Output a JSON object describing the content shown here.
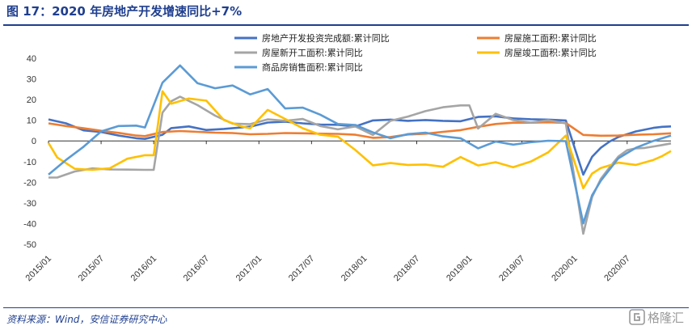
{
  "figure": {
    "title": "图 17：2020 年房地产开发增速同比+7%",
    "source": "资料来源：Wind，安信证券研究中心"
  },
  "watermark": {
    "icon": "gelonghui-logo-icon",
    "text": "格隆汇"
  },
  "chart_data": {
    "type": "line",
    "ylim": [
      -50,
      40
    ],
    "yticks": [
      -50,
      -40,
      -30,
      -20,
      -10,
      0,
      10,
      20,
      30,
      40
    ],
    "x_start": "2015/01",
    "x_end": "2020/12",
    "xticks": [
      "2015/01",
      "2015/07",
      "2016/01",
      "2016/07",
      "2017/01",
      "2017/07",
      "2018/01",
      "2018/07",
      "2019/01",
      "2019/07",
      "2020/01",
      "2020/07"
    ],
    "grid": false,
    "legend_position": "top",
    "series": [
      {
        "name": "房地产开发投资完成额:累计同比",
        "color": "#4472c4",
        "points": [
          [
            "2015/01",
            10.4
          ],
          [
            "2015/03",
            8.5
          ],
          [
            "2015/05",
            5.1
          ],
          [
            "2015/07",
            4.3
          ],
          [
            "2015/09",
            2.6
          ],
          [
            "2015/11",
            1.3
          ],
          [
            "2015/12",
            1.0
          ],
          [
            "2016/02",
            3.0
          ],
          [
            "2016/03",
            6.2
          ],
          [
            "2016/05",
            7.0
          ],
          [
            "2016/07",
            5.3
          ],
          [
            "2016/09",
            5.8
          ],
          [
            "2016/11",
            6.5
          ],
          [
            "2016/12",
            6.9
          ],
          [
            "2017/02",
            8.9
          ],
          [
            "2017/04",
            9.3
          ],
          [
            "2017/06",
            8.5
          ],
          [
            "2017/08",
            7.9
          ],
          [
            "2017/10",
            7.8
          ],
          [
            "2017/12",
            7.0
          ],
          [
            "2018/02",
            9.9
          ],
          [
            "2018/04",
            10.3
          ],
          [
            "2018/06",
            9.7
          ],
          [
            "2018/08",
            10.1
          ],
          [
            "2018/10",
            9.7
          ],
          [
            "2018/12",
            9.5
          ],
          [
            "2019/02",
            11.6
          ],
          [
            "2019/04",
            11.9
          ],
          [
            "2019/06",
            10.9
          ],
          [
            "2019/08",
            10.5
          ],
          [
            "2019/10",
            10.3
          ],
          [
            "2019/12",
            9.9
          ],
          [
            "2020/02",
            -16.3
          ],
          [
            "2020/03",
            -7.7
          ],
          [
            "2020/04",
            -3.3
          ],
          [
            "2020/05",
            -0.3
          ],
          [
            "2020/06",
            1.9
          ],
          [
            "2020/08",
            4.6
          ],
          [
            "2020/10",
            6.3
          ],
          [
            "2020/11",
            6.8
          ],
          [
            "2020/12",
            7.0
          ]
        ]
      },
      {
        "name": "房屋施工面积:累计同比",
        "color": "#ed7d31",
        "points": [
          [
            "2015/01",
            8.5
          ],
          [
            "2015/03",
            7.2
          ],
          [
            "2015/05",
            6.1
          ],
          [
            "2015/07",
            4.9
          ],
          [
            "2015/09",
            3.9
          ],
          [
            "2015/11",
            2.6
          ],
          [
            "2015/12",
            2.3
          ],
          [
            "2016/02",
            4.3
          ],
          [
            "2016/04",
            4.8
          ],
          [
            "2016/06",
            4.4
          ],
          [
            "2016/08",
            4.0
          ],
          [
            "2016/10",
            3.8
          ],
          [
            "2016/12",
            3.2
          ],
          [
            "2017/02",
            3.4
          ],
          [
            "2017/04",
            3.8
          ],
          [
            "2017/06",
            3.7
          ],
          [
            "2017/08",
            3.5
          ],
          [
            "2017/10",
            3.4
          ],
          [
            "2017/12",
            3.0
          ],
          [
            "2018/02",
            1.5
          ],
          [
            "2018/04",
            1.9
          ],
          [
            "2018/06",
            3.1
          ],
          [
            "2018/08",
            3.5
          ],
          [
            "2018/10",
            4.4
          ],
          [
            "2018/12",
            5.2
          ],
          [
            "2019/02",
            6.8
          ],
          [
            "2019/04",
            8.2
          ],
          [
            "2019/06",
            8.8
          ],
          [
            "2019/08",
            8.8
          ],
          [
            "2019/10",
            9.0
          ],
          [
            "2019/12",
            8.7
          ],
          [
            "2020/02",
            2.9
          ],
          [
            "2020/04",
            2.5
          ],
          [
            "2020/06",
            2.6
          ],
          [
            "2020/08",
            3.0
          ],
          [
            "2020/10",
            3.2
          ],
          [
            "2020/12",
            3.7
          ]
        ]
      },
      {
        "name": "房屋新开工面积:累计同比",
        "color": "#a5a5a5",
        "points": [
          [
            "2015/01",
            -17.7
          ],
          [
            "2015/02",
            -17.7
          ],
          [
            "2015/04",
            -14.8
          ],
          [
            "2015/06",
            -13.3
          ],
          [
            "2015/08",
            -13.8
          ],
          [
            "2015/10",
            -13.9
          ],
          [
            "2015/12",
            -14.0
          ],
          [
            "2016/01",
            -14.0
          ],
          [
            "2016/02",
            13.7
          ],
          [
            "2016/03",
            19.2
          ],
          [
            "2016/04",
            21.4
          ],
          [
            "2016/06",
            17.3
          ],
          [
            "2016/08",
            12.2
          ],
          [
            "2016/10",
            8.4
          ],
          [
            "2016/12",
            8.1
          ],
          [
            "2017/02",
            10.4
          ],
          [
            "2017/04",
            9.7
          ],
          [
            "2017/06",
            10.6
          ],
          [
            "2017/08",
            7.2
          ],
          [
            "2017/10",
            5.6
          ],
          [
            "2017/12",
            7.0
          ],
          [
            "2018/02",
            2.9
          ],
          [
            "2018/04",
            9.7
          ],
          [
            "2018/06",
            11.8
          ],
          [
            "2018/08",
            14.4
          ],
          [
            "2018/10",
            16.3
          ],
          [
            "2018/12",
            17.2
          ],
          [
            "2019/01",
            17.2
          ],
          [
            "2019/02",
            6.0
          ],
          [
            "2019/04",
            13.1
          ],
          [
            "2019/06",
            10.1
          ],
          [
            "2019/08",
            8.9
          ],
          [
            "2019/10",
            10.0
          ],
          [
            "2019/12",
            8.5
          ],
          [
            "2020/02",
            -44.9
          ],
          [
            "2020/03",
            -27.2
          ],
          [
            "2020/04",
            -18.4
          ],
          [
            "2020/05",
            -12.8
          ],
          [
            "2020/06",
            -7.6
          ],
          [
            "2020/07",
            -4.5
          ],
          [
            "2020/08",
            -3.6
          ],
          [
            "2020/09",
            -3.4
          ],
          [
            "2020/10",
            -2.7
          ],
          [
            "2020/11",
            -2.0
          ],
          [
            "2020/12",
            -1.2
          ]
        ]
      },
      {
        "name": "房屋竣工面积:累计同比",
        "color": "#ffc000",
        "points": [
          [
            "2015/01",
            -1.0
          ],
          [
            "2015/02",
            -8.0
          ],
          [
            "2015/04",
            -13.5
          ],
          [
            "2015/06",
            -14.0
          ],
          [
            "2015/08",
            -13.2
          ],
          [
            "2015/10",
            -8.6
          ],
          [
            "2015/12",
            -6.9
          ],
          [
            "2016/01",
            -6.9
          ],
          [
            "2016/02",
            24.0
          ],
          [
            "2016/03",
            18.0
          ],
          [
            "2016/05",
            20.5
          ],
          [
            "2016/07",
            19.5
          ],
          [
            "2016/09",
            10.1
          ],
          [
            "2016/11",
            7.0
          ],
          [
            "2016/12",
            6.1
          ],
          [
            "2017/02",
            15.0
          ],
          [
            "2017/04",
            10.6
          ],
          [
            "2017/06",
            6.1
          ],
          [
            "2017/08",
            3.0
          ],
          [
            "2017/10",
            2.1
          ],
          [
            "2017/12",
            -4.4
          ],
          [
            "2018/02",
            -11.8
          ],
          [
            "2018/04",
            -10.7
          ],
          [
            "2018/06",
            -11.6
          ],
          [
            "2018/08",
            -11.4
          ],
          [
            "2018/10",
            -12.5
          ],
          [
            "2018/12",
            -7.8
          ],
          [
            "2019/02",
            -11.9
          ],
          [
            "2019/04",
            -10.3
          ],
          [
            "2019/06",
            -12.7
          ],
          [
            "2019/08",
            -10.0
          ],
          [
            "2019/10",
            -5.5
          ],
          [
            "2019/12",
            2.6
          ],
          [
            "2020/02",
            -22.9
          ],
          [
            "2020/03",
            -15.8
          ],
          [
            "2020/04",
            -13.1
          ],
          [
            "2020/06",
            -10.5
          ],
          [
            "2020/08",
            -11.6
          ],
          [
            "2020/10",
            -9.2
          ],
          [
            "2020/11",
            -7.3
          ],
          [
            "2020/12",
            -4.9
          ]
        ]
      },
      {
        "name": "商品房销售面积:累计同比",
        "color": "#5b9bd5",
        "points": [
          [
            "2015/01",
            -16.3
          ],
          [
            "2015/03",
            -9.2
          ],
          [
            "2015/05",
            -2.8
          ],
          [
            "2015/07",
            4.6
          ],
          [
            "2015/09",
            7.2
          ],
          [
            "2015/11",
            7.4
          ],
          [
            "2015/12",
            6.5
          ],
          [
            "2016/02",
            28.2
          ],
          [
            "2016/04",
            36.5
          ],
          [
            "2016/06",
            27.9
          ],
          [
            "2016/08",
            25.5
          ],
          [
            "2016/10",
            26.8
          ],
          [
            "2016/12",
            22.5
          ],
          [
            "2017/02",
            25.1
          ],
          [
            "2017/04",
            15.7
          ],
          [
            "2017/06",
            16.1
          ],
          [
            "2017/08",
            12.7
          ],
          [
            "2017/10",
            8.2
          ],
          [
            "2017/12",
            7.7
          ],
          [
            "2018/02",
            4.1
          ],
          [
            "2018/04",
            1.3
          ],
          [
            "2018/06",
            3.3
          ],
          [
            "2018/08",
            4.0
          ],
          [
            "2018/10",
            2.2
          ],
          [
            "2018/12",
            1.3
          ],
          [
            "2019/02",
            -3.6
          ],
          [
            "2019/04",
            -0.3
          ],
          [
            "2019/06",
            -1.8
          ],
          [
            "2019/08",
            -0.6
          ],
          [
            "2019/10",
            0.1
          ],
          [
            "2019/12",
            -0.1
          ],
          [
            "2020/02",
            -39.9
          ],
          [
            "2020/03",
            -26.3
          ],
          [
            "2020/04",
            -19.3
          ],
          [
            "2020/06",
            -8.4
          ],
          [
            "2020/08",
            -3.3
          ],
          [
            "2020/10",
            0.0
          ],
          [
            "2020/11",
            1.3
          ],
          [
            "2020/12",
            2.6
          ]
        ]
      }
    ]
  }
}
